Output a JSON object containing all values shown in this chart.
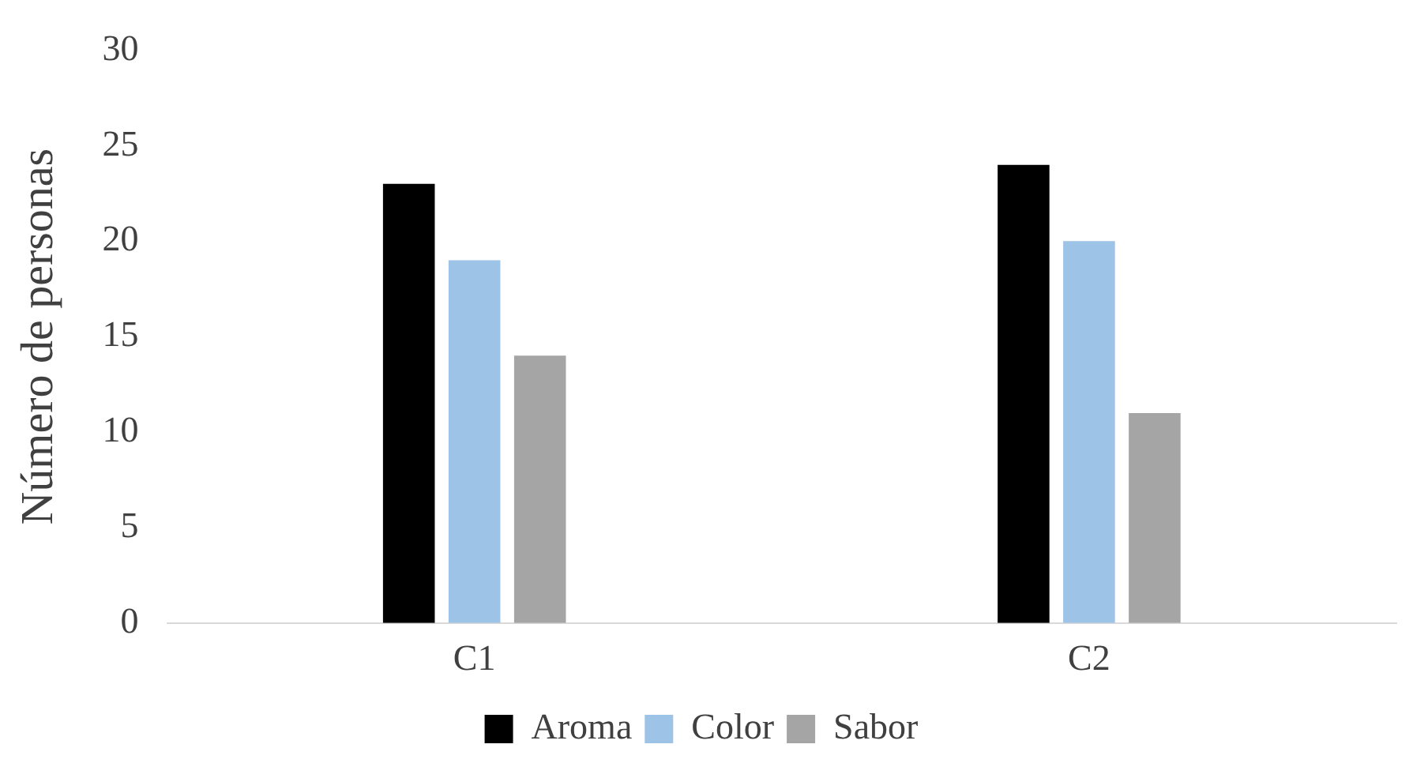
{
  "chart_data": {
    "type": "bar",
    "ylabel": "Número de personas",
    "categories": [
      "C1",
      "C2"
    ],
    "series": [
      {
        "name": "Aroma",
        "color": "#000000",
        "values": [
          23,
          24
        ]
      },
      {
        "name": "Color",
        "color": "#9dc3e6",
        "values": [
          19,
          20
        ]
      },
      {
        "name": "Sabor",
        "color": "#a5a5a5",
        "values": [
          14,
          11
        ]
      }
    ],
    "ylim": [
      0,
      30
    ],
    "yticks": [
      0,
      5,
      10,
      15,
      20,
      25,
      30
    ],
    "grid": false,
    "legend": "bottom"
  }
}
